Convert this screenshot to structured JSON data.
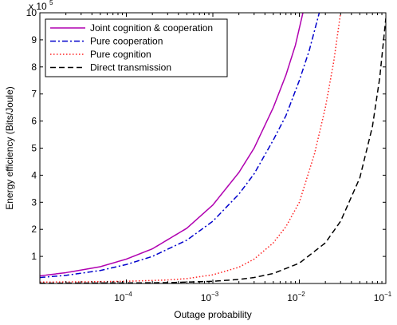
{
  "chart_data": {
    "type": "line",
    "xlabel": "Outage probability",
    "ylabel": "Energy efficiency (Bits/Joule)",
    "x_scale": "log",
    "xlim": [
      1e-05,
      0.1
    ],
    "ylim": [
      0,
      1000000
    ],
    "y_exponent_label": "x 10",
    "y_exponent_power": "5",
    "grid": false,
    "legend_position": "top-left",
    "x_ticks": [
      {
        "value": 0.0001,
        "base": "10",
        "exp": "−4"
      },
      {
        "value": 0.001,
        "base": "10",
        "exp": "−3"
      },
      {
        "value": 0.01,
        "base": "10",
        "exp": "−2"
      },
      {
        "value": 0.1,
        "base": "10",
        "exp": "−1"
      }
    ],
    "y_ticks": [
      {
        "value": 100000,
        "label": "1"
      },
      {
        "value": 200000,
        "label": "2"
      },
      {
        "value": 300000,
        "label": "3"
      },
      {
        "value": 400000,
        "label": "4"
      },
      {
        "value": 500000,
        "label": "5"
      },
      {
        "value": 600000,
        "label": "6"
      },
      {
        "value": 700000,
        "label": "7"
      },
      {
        "value": 800000,
        "label": "8"
      },
      {
        "value": 900000,
        "label": "9"
      },
      {
        "value": 1000000,
        "label": "10"
      }
    ],
    "series": [
      {
        "name": "Joint cognition & cooperation",
        "color": "#b000b0",
        "dash": "solid",
        "x": [
          1e-05,
          2e-05,
          5e-05,
          0.0001,
          0.0002,
          0.0005,
          0.001,
          0.002,
          0.003,
          0.005,
          0.007,
          0.009,
          0.011
        ],
        "y": [
          28000,
          40000,
          62000,
          90000,
          128000,
          204000,
          290000,
          410000,
          500000,
          650000,
          770000,
          880000,
          1000000
        ]
      },
      {
        "name": "Pure cooperation",
        "color": "#0000cc",
        "dash": "dashdot",
        "x": [
          1e-05,
          2e-05,
          5e-05,
          0.0001,
          0.0002,
          0.0005,
          0.001,
          0.002,
          0.003,
          0.005,
          0.007,
          0.01,
          0.013,
          0.017
        ],
        "y": [
          22000,
          30000,
          48000,
          70000,
          100000,
          160000,
          230000,
          330000,
          405000,
          530000,
          620000,
          750000,
          860000,
          1000000
        ]
      },
      {
        "name": "Pure cognition",
        "color": "#ff2020",
        "dash": "dotted",
        "x": [
          1e-05,
          3e-05,
          0.0001,
          0.0003,
          0.0005,
          0.001,
          0.002,
          0.003,
          0.005,
          0.007,
          0.01,
          0.015,
          0.02,
          0.025,
          0.03
        ],
        "y": [
          5000,
          6000,
          8000,
          13000,
          18000,
          32000,
          60000,
          90000,
          150000,
          210000,
          300000,
          480000,
          650000,
          820000,
          1000000
        ]
      },
      {
        "name": "Direct transmission",
        "color": "#000000",
        "dash": "dashed",
        "x": [
          1e-05,
          0.0001,
          0.0003,
          0.001,
          0.002,
          0.003,
          0.005,
          0.01,
          0.02,
          0.03,
          0.05,
          0.07,
          0.085,
          0.1
        ],
        "y": [
          1000,
          2000,
          3000,
          8000,
          15000,
          22000,
          37000,
          75000,
          150000,
          230000,
          390000,
          580000,
          760000,
          980000
        ]
      }
    ]
  }
}
